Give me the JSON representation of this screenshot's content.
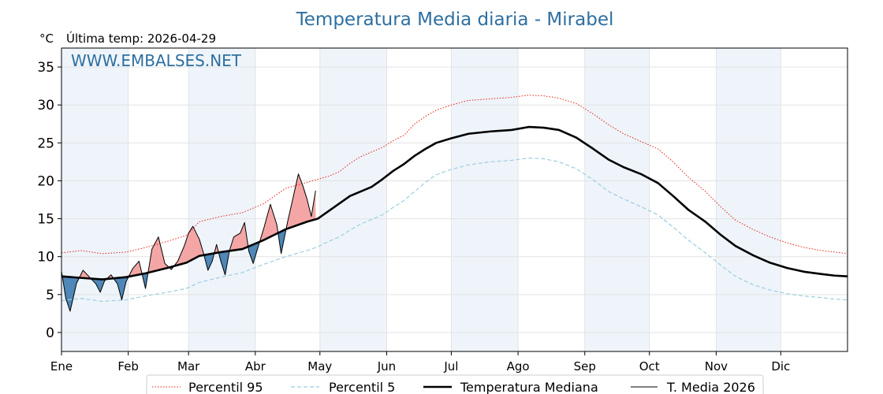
{
  "chart_data": {
    "type": "line",
    "title": "Temperatura Media diaria - Mirabel",
    "unit_label": "°C",
    "last_temp_label": "Última temp: 2026-04-29",
    "watermark": "WWW.EMBALSES.NET",
    "ylim": [
      -2.5,
      37.5
    ],
    "yticks": [
      0,
      5,
      10,
      15,
      20,
      25,
      30,
      35
    ],
    "grid": true,
    "months": [
      "Ene",
      "Feb",
      "Mar",
      "Abr",
      "May",
      "Jun",
      "Jul",
      "Ago",
      "Sep",
      "Oct",
      "Nov",
      "Dic"
    ],
    "month_start_days": [
      1,
      32,
      60,
      91,
      121,
      152,
      182,
      213,
      244,
      274,
      305,
      335
    ],
    "x_max_day": 366,
    "legend_position": "bottom",
    "series": [
      {
        "name": "Percentil 95",
        "color": "#e8201a",
        "style": "dotted",
        "points": [
          [
            1,
            10.5
          ],
          [
            10,
            10.8
          ],
          [
            20,
            10.4
          ],
          [
            31,
            10.6
          ],
          [
            40,
            11.2
          ],
          [
            50,
            12.0
          ],
          [
            59,
            12.8
          ],
          [
            65,
            14.6
          ],
          [
            75,
            15.3
          ],
          [
            85,
            15.8
          ],
          [
            95,
            17.0
          ],
          [
            105,
            19.0
          ],
          [
            115,
            19.8
          ],
          [
            120,
            20.2
          ],
          [
            125,
            20.6
          ],
          [
            130,
            21.2
          ],
          [
            135,
            22.3
          ],
          [
            140,
            23.2
          ],
          [
            145,
            23.8
          ],
          [
            150,
            24.4
          ],
          [
            155,
            25.3
          ],
          [
            160,
            26.0
          ],
          [
            165,
            27.5
          ],
          [
            170,
            28.5
          ],
          [
            175,
            29.3
          ],
          [
            182,
            30.0
          ],
          [
            190,
            30.6
          ],
          [
            200,
            30.8
          ],
          [
            210,
            31.0
          ],
          [
            218,
            31.3
          ],
          [
            225,
            31.2
          ],
          [
            232,
            30.9
          ],
          [
            240,
            30.2
          ],
          [
            248,
            28.8
          ],
          [
            255,
            27.4
          ],
          [
            262,
            26.2
          ],
          [
            270,
            25.2
          ],
          [
            278,
            24.2
          ],
          [
            285,
            22.5
          ],
          [
            292,
            20.5
          ],
          [
            300,
            18.6
          ],
          [
            307,
            16.6
          ],
          [
            314,
            14.8
          ],
          [
            322,
            13.6
          ],
          [
            330,
            12.6
          ],
          [
            338,
            11.8
          ],
          [
            346,
            11.2
          ],
          [
            354,
            10.8
          ],
          [
            360,
            10.6
          ],
          [
            366,
            10.4
          ]
        ]
      },
      {
        "name": "Percentil 5",
        "color": "#9ccde0",
        "style": "dashed",
        "points": [
          [
            1,
            4.2
          ],
          [
            10,
            4.5
          ],
          [
            20,
            4.1
          ],
          [
            31,
            4.3
          ],
          [
            40,
            4.8
          ],
          [
            50,
            5.3
          ],
          [
            59,
            5.8
          ],
          [
            65,
            6.6
          ],
          [
            75,
            7.3
          ],
          [
            85,
            7.9
          ],
          [
            95,
            9.0
          ],
          [
            105,
            10.0
          ],
          [
            115,
            10.8
          ],
          [
            120,
            11.3
          ],
          [
            125,
            12.0
          ],
          [
            130,
            12.6
          ],
          [
            135,
            13.5
          ],
          [
            140,
            14.3
          ],
          [
            145,
            14.9
          ],
          [
            150,
            15.5
          ],
          [
            155,
            16.5
          ],
          [
            160,
            17.4
          ],
          [
            165,
            18.6
          ],
          [
            170,
            19.8
          ],
          [
            175,
            20.8
          ],
          [
            182,
            21.5
          ],
          [
            190,
            22.1
          ],
          [
            200,
            22.5
          ],
          [
            210,
            22.7
          ],
          [
            218,
            23.0
          ],
          [
            225,
            22.9
          ],
          [
            232,
            22.5
          ],
          [
            240,
            21.6
          ],
          [
            248,
            20.1
          ],
          [
            255,
            18.6
          ],
          [
            262,
            17.6
          ],
          [
            270,
            16.6
          ],
          [
            278,
            15.5
          ],
          [
            285,
            13.9
          ],
          [
            292,
            12.2
          ],
          [
            300,
            10.5
          ],
          [
            307,
            8.9
          ],
          [
            314,
            7.4
          ],
          [
            322,
            6.3
          ],
          [
            330,
            5.6
          ],
          [
            338,
            5.1
          ],
          [
            346,
            4.8
          ],
          [
            354,
            4.6
          ],
          [
            360,
            4.4
          ],
          [
            366,
            4.3
          ]
        ]
      },
      {
        "name": "Temperatura Mediana",
        "color": "#000000",
        "style": "solid-thick",
        "points": [
          [
            1,
            7.4
          ],
          [
            10,
            7.2
          ],
          [
            20,
            7.0
          ],
          [
            31,
            7.3
          ],
          [
            40,
            7.8
          ],
          [
            50,
            8.5
          ],
          [
            59,
            9.2
          ],
          [
            65,
            10.1
          ],
          [
            75,
            10.6
          ],
          [
            85,
            11.0
          ],
          [
            95,
            12.2
          ],
          [
            105,
            13.6
          ],
          [
            115,
            14.6
          ],
          [
            120,
            15.0
          ],
          [
            125,
            16.0
          ],
          [
            130,
            17.0
          ],
          [
            135,
            18.0
          ],
          [
            140,
            18.6
          ],
          [
            145,
            19.2
          ],
          [
            150,
            20.2
          ],
          [
            155,
            21.3
          ],
          [
            160,
            22.2
          ],
          [
            165,
            23.3
          ],
          [
            170,
            24.2
          ],
          [
            175,
            25.0
          ],
          [
            182,
            25.6
          ],
          [
            190,
            26.2
          ],
          [
            200,
            26.5
          ],
          [
            210,
            26.7
          ],
          [
            218,
            27.1
          ],
          [
            225,
            27.0
          ],
          [
            232,
            26.7
          ],
          [
            240,
            25.7
          ],
          [
            248,
            24.2
          ],
          [
            255,
            22.8
          ],
          [
            262,
            21.8
          ],
          [
            270,
            20.9
          ],
          [
            278,
            19.7
          ],
          [
            285,
            18.0
          ],
          [
            292,
            16.2
          ],
          [
            300,
            14.6
          ],
          [
            307,
            12.9
          ],
          [
            314,
            11.4
          ],
          [
            322,
            10.2
          ],
          [
            330,
            9.2
          ],
          [
            338,
            8.5
          ],
          [
            346,
            8.0
          ],
          [
            354,
            7.7
          ],
          [
            360,
            7.5
          ],
          [
            366,
            7.4
          ]
        ]
      },
      {
        "name": "T. Media 2026",
        "color": "#000000",
        "style": "solid-thin",
        "points": [
          [
            1,
            8.1
          ],
          [
            3,
            4.5
          ],
          [
            5,
            2.8
          ],
          [
            8,
            6.5
          ],
          [
            11,
            8.2
          ],
          [
            14,
            7.3
          ],
          [
            17,
            6.4
          ],
          [
            19,
            5.3
          ],
          [
            21,
            6.8
          ],
          [
            24,
            7.6
          ],
          [
            27,
            6.4
          ],
          [
            29,
            4.3
          ],
          [
            31,
            6.7
          ],
          [
            34,
            8.4
          ],
          [
            37,
            9.4
          ],
          [
            40,
            5.8
          ],
          [
            43,
            11.0
          ],
          [
            46,
            12.6
          ],
          [
            49,
            9.1
          ],
          [
            52,
            8.3
          ],
          [
            55,
            9.4
          ],
          [
            58,
            11.4
          ],
          [
            60,
            13.1
          ],
          [
            62,
            14.0
          ],
          [
            65,
            12.3
          ],
          [
            67,
            10.4
          ],
          [
            69,
            8.2
          ],
          [
            71,
            9.4
          ],
          [
            73,
            11.6
          ],
          [
            75,
            9.4
          ],
          [
            77,
            7.6
          ],
          [
            79,
            10.8
          ],
          [
            81,
            12.6
          ],
          [
            84,
            13.1
          ],
          [
            86,
            14.5
          ],
          [
            88,
            10.7
          ],
          [
            90,
            9.1
          ],
          [
            92,
            11.0
          ],
          [
            95,
            13.8
          ],
          [
            98,
            16.9
          ],
          [
            101,
            14.2
          ],
          [
            103,
            10.4
          ],
          [
            106,
            14.6
          ],
          [
            108,
            17.1
          ],
          [
            111,
            20.9
          ],
          [
            113,
            19.4
          ],
          [
            115,
            17.6
          ],
          [
            117,
            15.3
          ],
          [
            119,
            18.7
          ]
        ]
      }
    ]
  },
  "legend": {
    "items": [
      {
        "label": "Percentil 95"
      },
      {
        "label": "Percentil 5"
      },
      {
        "label": "Temperatura Mediana"
      },
      {
        "label": "T. Media 2026"
      }
    ]
  },
  "colors": {
    "above_fill": "#f4a6a6",
    "below_fill": "#4f87b8",
    "band_fill": "#eef4fa",
    "title": "#2e6fa0"
  }
}
